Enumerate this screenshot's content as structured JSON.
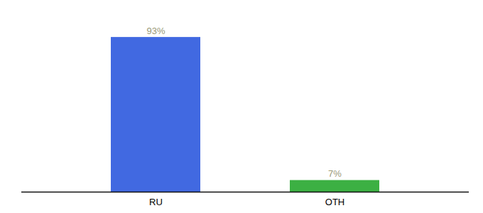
{
  "chart_data": {
    "type": "bar",
    "categories": [
      "RU",
      "OTH"
    ],
    "values": [
      93,
      7
    ],
    "value_labels": [
      "93%",
      "7%"
    ],
    "colors": [
      "#4169e1",
      "#3cb043"
    ],
    "ylim": [
      0,
      105
    ],
    "data_labels": true,
    "tick_labels": "x"
  }
}
